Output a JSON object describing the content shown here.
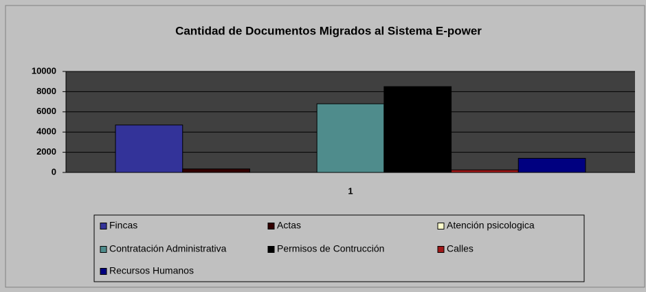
{
  "chart_data": {
    "type": "bar",
    "title": "Cantidad de Documentos Migrados al Sistema E-power",
    "categories": [
      "1"
    ],
    "series": [
      {
        "name": "Fincas",
        "color": "#333399",
        "values": [
          4700
        ]
      },
      {
        "name": "Actas",
        "color": "#330000",
        "values": [
          350
        ]
      },
      {
        "name": "Atención psicologica",
        "color": "#ffffcc",
        "values": [
          0
        ]
      },
      {
        "name": "Contratación Administrativa",
        "color": "#4f8c8c",
        "values": [
          6800
        ]
      },
      {
        "name": "Permisos de Contrucción",
        "color": "#000000",
        "values": [
          8500
        ]
      },
      {
        "name": "Calles",
        "color": "#a01818",
        "values": [
          250
        ]
      },
      {
        "name": "Recursos Humanos",
        "color": "#000080",
        "values": [
          1400
        ]
      }
    ],
    "ylim": [
      0,
      10000
    ],
    "yticks": [
      0,
      2000,
      4000,
      6000,
      8000,
      10000
    ],
    "grid": true,
    "legend": "bottom"
  }
}
